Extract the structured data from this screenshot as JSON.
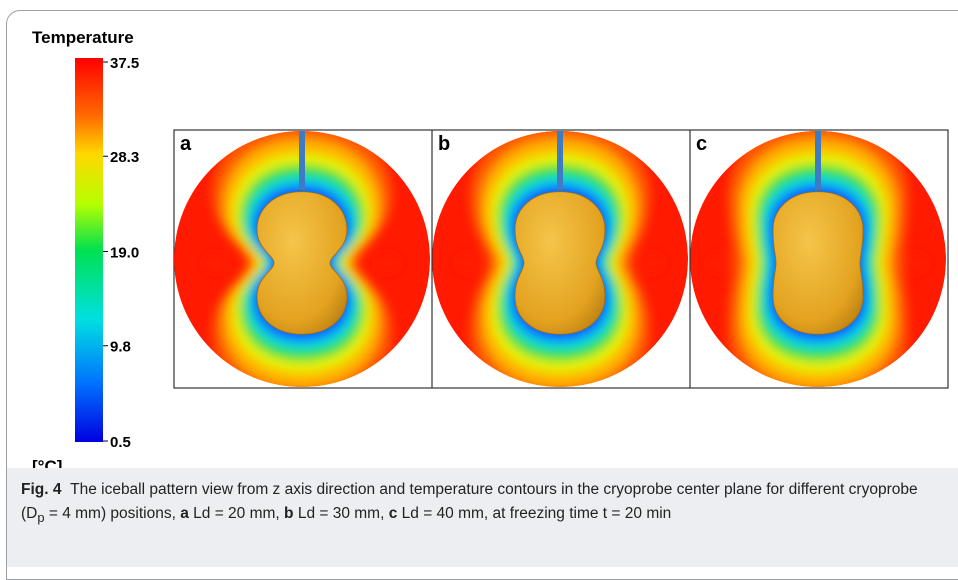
{
  "figure": {
    "colorbar": {
      "title": "Temperature",
      "unit": "[°C]",
      "lim": [
        0.5,
        37.5
      ],
      "ticks": [
        37.5,
        28.3,
        {
          "value": 19,
          "label": "19.0"
        },
        9.8,
        0.5
      ]
    },
    "panels": [
      {
        "label": "a"
      },
      {
        "label": "b"
      },
      {
        "label": "c"
      }
    ],
    "caption": {
      "label": "Fig. 4",
      "segments": [
        "The iceball pattern view from z axis direction and temperature contours in the cryoprobe center plane for different cryoprobe (D",
        "p",
        " = 4 mm) positions, ",
        "a",
        " Ld = 20 mm, ",
        "b",
        " Ld = 30 mm, ",
        "c",
        " Ld = 40 mm, at freezing time t = 20 min"
      ]
    }
  }
}
